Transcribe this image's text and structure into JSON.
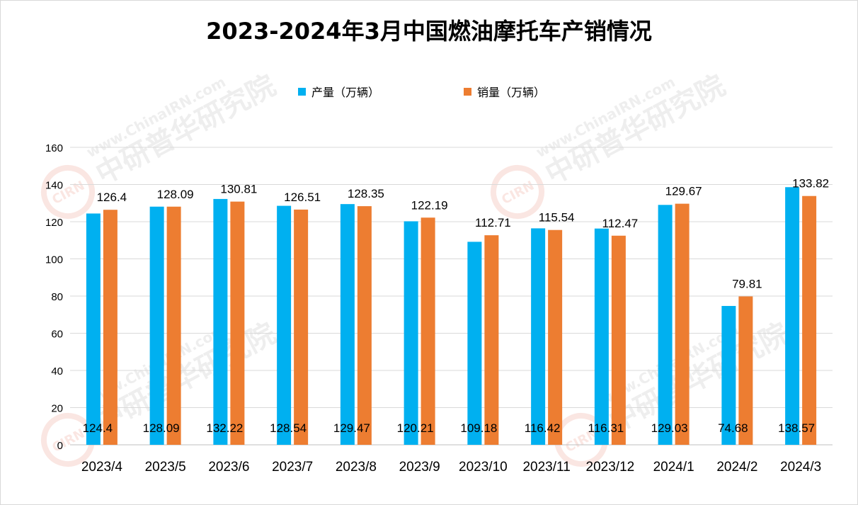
{
  "chart_data": {
    "type": "bar",
    "title": "2023-2024年3月中国燃油摩托车产销情况",
    "categories": [
      "2023/4",
      "2023/5",
      "2023/6",
      "2023/7",
      "2023/8",
      "2023/9",
      "2023/10",
      "2023/11",
      "2023/12",
      "2024/1",
      "2024/2",
      "2024/3"
    ],
    "series": [
      {
        "name": "产量（万辆）",
        "color": "#00b0f0",
        "values": [
          124.4,
          128.09,
          132.22,
          128.54,
          129.47,
          120.21,
          109.18,
          116.42,
          116.31,
          129.03,
          74.68,
          138.57
        ]
      },
      {
        "name": "销量（万辆）",
        "color": "#ed7d31",
        "values": [
          126.4,
          128.09,
          130.81,
          126.51,
          128.35,
          122.19,
          112.71,
          115.54,
          112.47,
          129.67,
          79.81,
          133.82
        ]
      }
    ],
    "value_labels": [
      [
        "124.4",
        "128.09",
        "132.22",
        "128.54",
        "129.47",
        "120.21",
        "109.18",
        "116.42",
        "116.31",
        "129.03",
        "74.68",
        "138.57"
      ],
      [
        "126.4",
        "128.09",
        "130.81",
        "126.51",
        "128.35",
        "122.19",
        "112.71",
        "115.54",
        "112.47",
        "129.67",
        "79.81",
        "133.82"
      ]
    ],
    "ylim": [
      0,
      160
    ],
    "yticks": [
      0,
      20,
      40,
      60,
      80,
      100,
      120,
      140,
      160
    ],
    "grid": true,
    "legend_position": "top-center"
  },
  "watermark": {
    "logo_text": "CIRN",
    "cn_text": "中研普华研究院",
    "url_text": "www.ChinaIRN.com"
  }
}
